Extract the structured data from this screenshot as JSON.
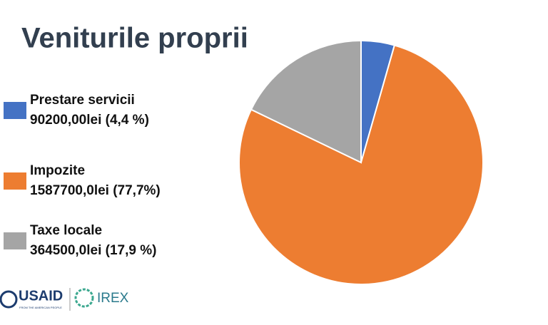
{
  "chart_data": {
    "type": "pie",
    "title": "Veniturile proprii",
    "categories": [
      "Prestare servicii",
      "Impozite",
      "Taxe locale"
    ],
    "values": [
      90200,
      1587700,
      364500
    ],
    "value_labels": [
      "90200,00lei (4,4 %)",
      "1587700,0lei (77,7%)",
      "364500,0lei (17,9 %)"
    ],
    "colors": [
      "#4472c4",
      "#ed7d31",
      "#a5a5a5"
    ]
  },
  "footer": {
    "logos": [
      "USAID",
      "FROM THE AMERICAN PEOPLE",
      "IREX"
    ]
  }
}
